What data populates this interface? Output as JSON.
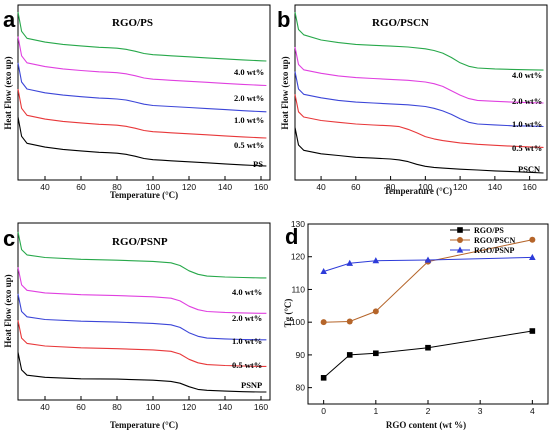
{
  "chart_data": [
    {
      "panel": "a",
      "type": "line",
      "title": "RGO/PS",
      "xlabel": "Temperature (°C)",
      "ylabel": "Heat Flow (exo up)",
      "xlim": [
        25,
        165
      ],
      "xticks": [
        40,
        60,
        80,
        100,
        120,
        140,
        160
      ],
      "grid": false,
      "legend": "inline curve labels at right",
      "series": [
        {
          "name": "PS",
          "color": "#000000",
          "base": 0.14,
          "x": [
            25,
            27,
            30,
            40,
            50,
            60,
            70,
            75,
            80,
            85,
            90,
            95,
            100,
            105,
            110,
            120,
            130,
            140,
            150,
            160,
            163
          ],
          "y": [
            0.36,
            0.25,
            0.21,
            0.188,
            0.175,
            0.166,
            0.158,
            0.156,
            0.153,
            0.147,
            0.136,
            0.123,
            0.116,
            0.113,
            0.11,
            0.104,
            0.098,
            0.092,
            0.086,
            0.081,
            0.08
          ]
        },
        {
          "name": "0.5 wt%",
          "color": "#e8383a",
          "base": 0.3,
          "x": [
            25,
            27,
            30,
            40,
            50,
            60,
            70,
            75,
            80,
            85,
            90,
            95,
            100,
            105,
            110,
            120,
            130,
            140,
            150,
            160,
            163
          ],
          "y": [
            0.52,
            0.41,
            0.37,
            0.348,
            0.335,
            0.326,
            0.318,
            0.316,
            0.313,
            0.307,
            0.296,
            0.283,
            0.276,
            0.273,
            0.27,
            0.264,
            0.258,
            0.252,
            0.246,
            0.241,
            0.24
          ]
        },
        {
          "name": "1.0 wt%",
          "color": "#3c46d8",
          "base": 0.45,
          "x": [
            25,
            27,
            30,
            40,
            50,
            60,
            70,
            75,
            80,
            85,
            90,
            95,
            100,
            105,
            110,
            120,
            130,
            140,
            150,
            160,
            163
          ],
          "y": [
            0.67,
            0.56,
            0.52,
            0.498,
            0.485,
            0.476,
            0.468,
            0.466,
            0.463,
            0.457,
            0.446,
            0.433,
            0.426,
            0.423,
            0.42,
            0.414,
            0.408,
            0.402,
            0.396,
            0.391,
            0.39
          ]
        },
        {
          "name": "2.0 wt%",
          "color": "#e040e0",
          "base": 0.6,
          "x": [
            25,
            27,
            30,
            40,
            50,
            60,
            70,
            75,
            80,
            85,
            90,
            95,
            100,
            105,
            110,
            120,
            130,
            140,
            150,
            160,
            163
          ],
          "y": [
            0.82,
            0.71,
            0.67,
            0.648,
            0.635,
            0.626,
            0.618,
            0.616,
            0.613,
            0.607,
            0.596,
            0.583,
            0.576,
            0.573,
            0.57,
            0.564,
            0.558,
            0.552,
            0.546,
            0.541,
            0.54
          ]
        },
        {
          "name": "4.0 wt%",
          "color": "#27a84a",
          "base": 0.74,
          "x": [
            25,
            27,
            30,
            40,
            50,
            60,
            70,
            75,
            80,
            85,
            90,
            95,
            100,
            105,
            110,
            120,
            130,
            140,
            150,
            160,
            163
          ],
          "y": [
            0.96,
            0.85,
            0.81,
            0.788,
            0.775,
            0.766,
            0.758,
            0.756,
            0.753,
            0.747,
            0.736,
            0.723,
            0.716,
            0.713,
            0.71,
            0.704,
            0.698,
            0.692,
            0.686,
            0.681,
            0.68
          ]
        }
      ]
    },
    {
      "panel": "b",
      "type": "line",
      "title": "RGO/PSCN",
      "xlabel": "Temperature (°C)",
      "ylabel": "Heat Flow (exo up)",
      "xlim": [
        25,
        170
      ],
      "xticks": [
        40,
        60,
        80,
        100,
        120,
        140,
        160
      ],
      "grid": false,
      "legend": "inline curve labels at right",
      "series": [
        {
          "name": "PSCN",
          "color": "#000000",
          "x": [
            25,
            27,
            30,
            40,
            50,
            60,
            70,
            80,
            85,
            90,
            95,
            100,
            105,
            110,
            120,
            130,
            140,
            150,
            160,
            168
          ],
          "y": [
            0.3,
            0.2,
            0.17,
            0.15,
            0.14,
            0.13,
            0.125,
            0.12,
            0.115,
            0.105,
            0.09,
            0.078,
            0.072,
            0.068,
            0.062,
            0.057,
            0.052,
            0.048,
            0.044,
            0.04
          ]
        },
        {
          "name": "0.5 wt%",
          "color": "#e8383a",
          "x": [
            25,
            27,
            30,
            40,
            50,
            60,
            70,
            80,
            85,
            90,
            95,
            100,
            105,
            110,
            120,
            130,
            140,
            150,
            160,
            168
          ],
          "y": [
            0.49,
            0.39,
            0.36,
            0.34,
            0.33,
            0.32,
            0.314,
            0.31,
            0.305,
            0.29,
            0.27,
            0.248,
            0.235,
            0.225,
            0.212,
            0.204,
            0.198,
            0.193,
            0.189,
            0.186
          ]
        },
        {
          "name": "1.0 wt%",
          "color": "#3c46d8",
          "x": [
            25,
            27,
            30,
            40,
            50,
            60,
            70,
            80,
            90,
            100,
            105,
            110,
            115,
            120,
            125,
            130,
            140,
            150,
            160,
            168
          ],
          "y": [
            0.62,
            0.52,
            0.49,
            0.47,
            0.455,
            0.445,
            0.44,
            0.435,
            0.43,
            0.42,
            0.41,
            0.395,
            0.375,
            0.35,
            0.33,
            0.32,
            0.315,
            0.31,
            0.308,
            0.306
          ]
        },
        {
          "name": "2.0 wt%",
          "color": "#e040e0",
          "x": [
            25,
            27,
            30,
            40,
            50,
            60,
            70,
            80,
            90,
            100,
            105,
            110,
            115,
            120,
            125,
            130,
            140,
            150,
            160,
            168
          ],
          "y": [
            0.76,
            0.66,
            0.63,
            0.61,
            0.595,
            0.585,
            0.58,
            0.575,
            0.57,
            0.56,
            0.55,
            0.535,
            0.51,
            0.485,
            0.465,
            0.455,
            0.45,
            0.445,
            0.442,
            0.44
          ]
        },
        {
          "name": "4.0 wt%",
          "color": "#27a84a",
          "x": [
            25,
            27,
            30,
            40,
            50,
            60,
            70,
            80,
            90,
            100,
            105,
            110,
            115,
            120,
            125,
            130,
            140,
            150,
            160,
            168
          ],
          "y": [
            0.96,
            0.86,
            0.83,
            0.8,
            0.785,
            0.775,
            0.77,
            0.765,
            0.76,
            0.75,
            0.74,
            0.725,
            0.7,
            0.67,
            0.65,
            0.64,
            0.635,
            0.632,
            0.63,
            0.628
          ]
        }
      ]
    },
    {
      "panel": "c",
      "type": "line",
      "title": "RGO/PSNP",
      "xlabel": "Temperature (°C)",
      "ylabel": "Heat Flow (exo up)",
      "xlim": [
        25,
        165
      ],
      "xticks": [
        40,
        60,
        80,
        100,
        120,
        140,
        160
      ],
      "grid": false,
      "legend": "inline curve labels at right",
      "series": [
        {
          "name": "PSNP",
          "color": "#000000",
          "x": [
            25,
            27,
            30,
            40,
            60,
            80,
            100,
            110,
            115,
            120,
            125,
            130,
            140,
            150,
            160,
            163
          ],
          "y": [
            0.27,
            0.17,
            0.14,
            0.128,
            0.12,
            0.118,
            0.112,
            0.105,
            0.095,
            0.075,
            0.06,
            0.055,
            0.05,
            0.047,
            0.045,
            0.045
          ]
        },
        {
          "name": "0.5 wt%",
          "color": "#e8383a",
          "x": [
            25,
            27,
            30,
            40,
            60,
            80,
            100,
            110,
            115,
            120,
            125,
            130,
            140,
            150,
            160,
            163
          ],
          "y": [
            0.45,
            0.35,
            0.32,
            0.305,
            0.295,
            0.29,
            0.283,
            0.275,
            0.26,
            0.23,
            0.21,
            0.2,
            0.195,
            0.192,
            0.19,
            0.19
          ]
        },
        {
          "name": "1.0 wt%",
          "color": "#3c46d8",
          "x": [
            25,
            27,
            30,
            40,
            60,
            80,
            100,
            110,
            115,
            120,
            125,
            130,
            140,
            150,
            160,
            163
          ],
          "y": [
            0.6,
            0.5,
            0.47,
            0.455,
            0.445,
            0.44,
            0.433,
            0.425,
            0.41,
            0.38,
            0.36,
            0.35,
            0.345,
            0.342,
            0.34,
            0.34
          ]
        },
        {
          "name": "2.0 wt%",
          "color": "#e040e0",
          "x": [
            25,
            27,
            30,
            40,
            60,
            80,
            100,
            110,
            115,
            120,
            125,
            130,
            140,
            150,
            160,
            163
          ],
          "y": [
            0.75,
            0.65,
            0.62,
            0.605,
            0.595,
            0.59,
            0.583,
            0.575,
            0.56,
            0.53,
            0.51,
            0.5,
            0.495,
            0.492,
            0.49,
            0.49
          ]
        },
        {
          "name": "4.0 wt%",
          "color": "#27a84a",
          "x": [
            25,
            27,
            30,
            40,
            60,
            80,
            100,
            110,
            115,
            120,
            125,
            130,
            140,
            150,
            160,
            163
          ],
          "y": [
            0.95,
            0.85,
            0.82,
            0.805,
            0.795,
            0.79,
            0.783,
            0.775,
            0.76,
            0.73,
            0.71,
            0.7,
            0.695,
            0.692,
            0.69,
            0.69
          ]
        }
      ]
    },
    {
      "panel": "d",
      "type": "line",
      "title": "",
      "xlabel": "RGO content (wt %)",
      "ylabel": "Tg (°C)",
      "xlim": [
        -0.3,
        4.3
      ],
      "ylim": [
        75,
        130
      ],
      "xticks": [
        0,
        1,
        2,
        3,
        4
      ],
      "yticks": [
        80,
        90,
        100,
        110,
        120,
        130
      ],
      "grid": false,
      "legend": "top-right",
      "x": [
        0,
        0.5,
        1.0,
        2.0,
        4.0
      ],
      "series": [
        {
          "name": "RGO/PS",
          "color": "#000000",
          "marker": "square",
          "values": [
            83,
            90,
            90.5,
            92.2,
            97.3
          ]
        },
        {
          "name": "RGO/PSCN",
          "color": "#b5652a",
          "marker": "circle",
          "values": [
            100,
            100.2,
            103.3,
            118.5,
            125.2
          ]
        },
        {
          "name": "RGO/PSNP",
          "color": "#2d3bd9",
          "marker": "triangle",
          "values": [
            115.5,
            118,
            118.8,
            119,
            119.8
          ]
        }
      ]
    }
  ]
}
